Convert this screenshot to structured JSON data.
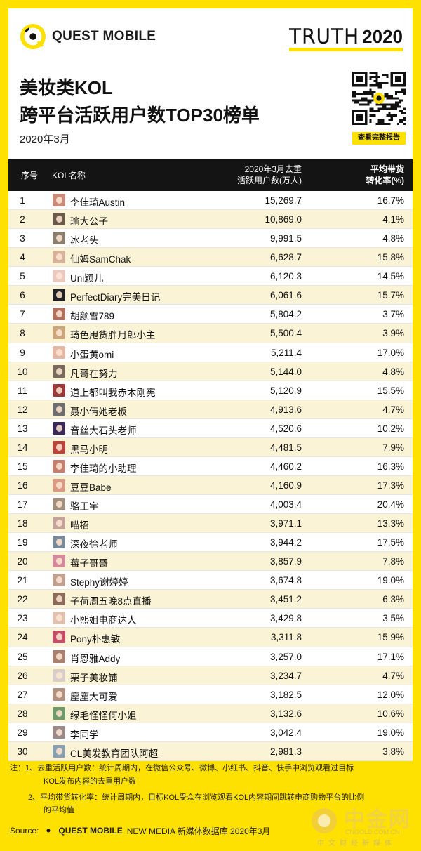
{
  "header": {
    "brand": "QUEST MOBILE",
    "truth_word": "TRUTH",
    "truth_year": "2020",
    "qr_caption": "查看完整报告"
  },
  "chart_data": {
    "type": "table",
    "title_line1": "美妆类KOL",
    "title_line2": "跨平台活跃用户数TOP30榜单",
    "subtitle": "2020年3月",
    "columns": {
      "rank": "序号",
      "name": "KOL名称",
      "users_l1": "2020年3月去重",
      "users_l2": "活跃用户数(万人)",
      "conv_l1": "平均带货",
      "conv_l2": "转化率(%)"
    },
    "rows": [
      {
        "rank": "1",
        "name": "李佳琦Austin",
        "users": "15,269.7",
        "conv": "16.7%"
      },
      {
        "rank": "2",
        "name": "瑜大公子",
        "users": "10,869.0",
        "conv": "4.1%"
      },
      {
        "rank": "3",
        "name": "冰老头",
        "users": "9,991.5",
        "conv": "4.8%"
      },
      {
        "rank": "4",
        "name": "仙姆SamChak",
        "users": "6,628.7",
        "conv": "15.8%"
      },
      {
        "rank": "5",
        "name": "Uni颖儿",
        "users": "6,120.3",
        "conv": "14.5%"
      },
      {
        "rank": "6",
        "name": "PerfectDiary完美日记",
        "users": "6,061.6",
        "conv": "15.7%"
      },
      {
        "rank": "7",
        "name": "胡颜雪789",
        "users": "5,804.2",
        "conv": "3.7%"
      },
      {
        "rank": "8",
        "name": "琦色甩货胖月郎小主",
        "users": "5,500.4",
        "conv": "3.9%"
      },
      {
        "rank": "9",
        "name": "小蛋黄omi",
        "users": "5,211.4",
        "conv": "17.0%"
      },
      {
        "rank": "10",
        "name": "凡哥在努力",
        "users": "5,144.0",
        "conv": "4.8%"
      },
      {
        "rank": "11",
        "name": "道上都叫我赤木刚宪",
        "users": "5,120.9",
        "conv": "15.5%"
      },
      {
        "rank": "12",
        "name": "聂小倩她老板",
        "users": "4,913.6",
        "conv": "4.7%"
      },
      {
        "rank": "13",
        "name": "音丝大石头老师",
        "users": "4,520.6",
        "conv": "10.2%"
      },
      {
        "rank": "14",
        "name": "黑马小明",
        "users": "4,481.5",
        "conv": "7.9%"
      },
      {
        "rank": "15",
        "name": "李佳琦的小助理",
        "users": "4,460.2",
        "conv": "16.3%"
      },
      {
        "rank": "16",
        "name": "豆豆Babe",
        "users": "4,160.9",
        "conv": "17.3%"
      },
      {
        "rank": "17",
        "name": "骆王宇",
        "users": "4,003.4",
        "conv": "20.4%"
      },
      {
        "rank": "18",
        "name": "喵招",
        "users": "3,971.1",
        "conv": "13.3%"
      },
      {
        "rank": "19",
        "name": "深夜徐老师",
        "users": "3,944.2",
        "conv": "17.5%"
      },
      {
        "rank": "20",
        "name": "莓子哥哥",
        "users": "3,857.9",
        "conv": "7.8%"
      },
      {
        "rank": "21",
        "name": "Stephy谢婷婷",
        "users": "3,674.8",
        "conv": "19.0%"
      },
      {
        "rank": "22",
        "name": "子荷周五晚8点直播",
        "users": "3,451.2",
        "conv": "6.3%"
      },
      {
        "rank": "23",
        "name": "小熙姐电商达人",
        "users": "3,429.8",
        "conv": "3.5%"
      },
      {
        "rank": "24",
        "name": "Pony朴惠敏",
        "users": "3,311.8",
        "conv": "15.9%"
      },
      {
        "rank": "25",
        "name": "肖恩雅Addy",
        "users": "3,257.0",
        "conv": "17.1%"
      },
      {
        "rank": "26",
        "name": "栗子美妆铺",
        "users": "3,234.7",
        "conv": "4.7%"
      },
      {
        "rank": "27",
        "name": "麈麈大可爱",
        "users": "3,182.5",
        "conv": "12.0%"
      },
      {
        "rank": "28",
        "name": "绿毛怪怪何小姐",
        "users": "3,132.6",
        "conv": "10.6%"
      },
      {
        "rank": "29",
        "name": "李同学",
        "users": "3,042.4",
        "conv": "19.0%"
      },
      {
        "rank": "30",
        "name": "CL美发教育团队阿超",
        "users": "2,981.3",
        "conv": "3.8%"
      }
    ]
  },
  "notes": {
    "line1": "注：1、去重活跃用户数：统计周期内，在微信公众号、微博、小红书、抖音、快手中浏览观看过目标",
    "line2": "KOL发布内容的去重用户数",
    "line3": "2、平均带货转化率：统计周期内，目标KOL受众在浏览观看KOL内容期间跳转电商购物平台的比例",
    "line4": "的平均值"
  },
  "source": {
    "label": "Source:",
    "brand": "QUEST MOBILE",
    "text": "NEW MEDIA 新媒体数据库 2020年3月"
  },
  "watermark": {
    "cn": "中金网",
    "url": "CNGOLD.COM.CN",
    "sub": "中文财经新媒体"
  },
  "colors": {
    "brand_yellow": "#ffe100",
    "header_black": "#141414",
    "alt_row": "#fbf3d5"
  }
}
